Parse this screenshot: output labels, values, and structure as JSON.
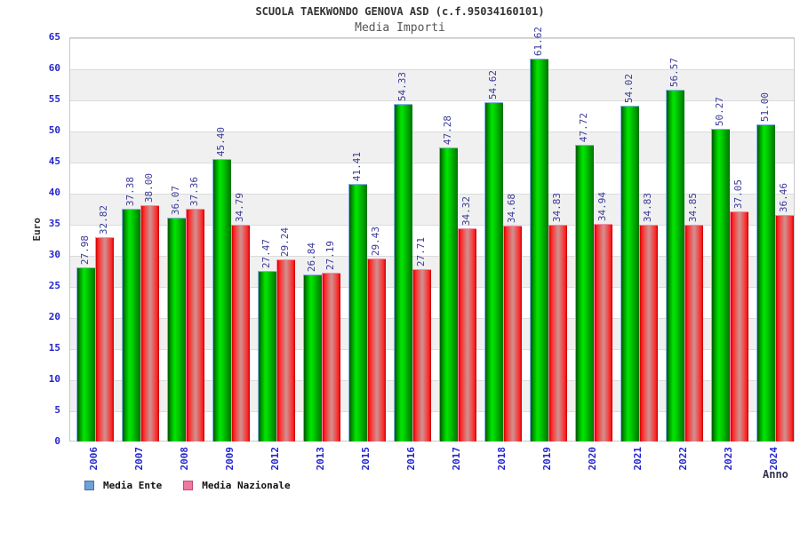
{
  "title": "SCUOLA TAEKWONDO GENOVA ASD (c.f.95034160101)",
  "subtitle": "Media Importi",
  "chart_data": {
    "type": "bar",
    "title": "SCUOLA TAEKWONDO GENOVA ASD (c.f.95034160101)",
    "subtitle": "Media Importi",
    "xlabel": "Anno",
    "ylabel": "Euro",
    "ylim": [
      0,
      65
    ],
    "ytick_step": 5,
    "grid": "horizontal-bands",
    "legend_position": "bottom-left",
    "categories": [
      "2006",
      "2007",
      "2008",
      "2009",
      "2012",
      "2013",
      "2015",
      "2016",
      "2017",
      "2018",
      "2019",
      "2020",
      "2021",
      "2022",
      "2023",
      "2024"
    ],
    "series": [
      {
        "name": "Media Ente",
        "color": "#00cc00",
        "legend_color": "#6fa0d8",
        "values": [
          27.98,
          37.38,
          36.07,
          45.4,
          27.47,
          26.84,
          41.41,
          54.33,
          47.28,
          54.62,
          61.62,
          47.72,
          54.02,
          56.57,
          50.27,
          51.0
        ]
      },
      {
        "name": "Media Nazionale",
        "color": "#ee2222",
        "legend_color": "#f078a0",
        "values": [
          32.82,
          38.0,
          37.36,
          34.79,
          29.24,
          27.19,
          29.43,
          27.71,
          34.32,
          34.68,
          34.83,
          34.94,
          34.83,
          34.85,
          37.05,
          36.46
        ]
      }
    ],
    "value_label_color": "#3a3a99",
    "tick_label_color": "#2525cd"
  },
  "legend": {
    "items": [
      {
        "label": "Media Ente"
      },
      {
        "label": "Media Nazionale"
      }
    ]
  }
}
